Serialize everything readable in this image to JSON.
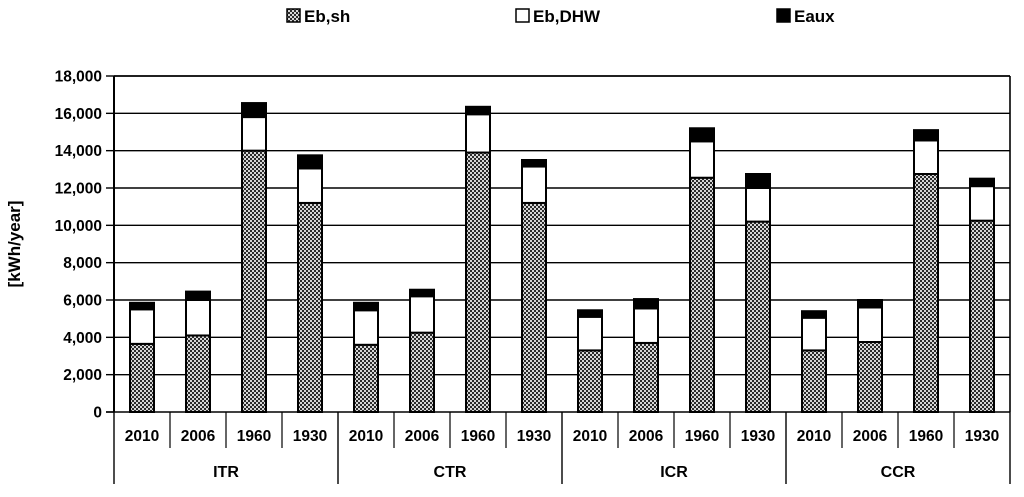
{
  "legend": {
    "items": [
      {
        "label": "Eb,sh",
        "swatch": "crosshatch-pattern",
        "color": "#8a8a8a"
      },
      {
        "label": "Eb,DHW",
        "swatch": "white-square",
        "color": "#ffffff"
      },
      {
        "label": "Eaux",
        "swatch": "black-square",
        "color": "#000000"
      }
    ]
  },
  "y_axis": {
    "title": "[kWh/year]",
    "tick_labels": [
      "0",
      "2,000",
      "4,000",
      "6,000",
      "8,000",
      "10,000",
      "12,000",
      "14,000",
      "16,000",
      "18,000"
    ]
  },
  "chart_data": {
    "type": "bar",
    "stacked": true,
    "title": "",
    "xlabel": "",
    "ylabel": "[kWh/year]",
    "ylim": [
      0,
      18000
    ],
    "ytick_step": 2000,
    "grid": "horizontal",
    "legend_position": "top",
    "groups": [
      "ITR",
      "CTR",
      "ICR",
      "CCR"
    ],
    "categories": [
      "2010",
      "2006",
      "1960",
      "1930"
    ],
    "series": [
      {
        "name": "Eb,sh",
        "fill": "crosshatch",
        "values_by_group": {
          "ITR": [
            3650,
            4100,
            14000,
            11200
          ],
          "CTR": [
            3600,
            4250,
            13900,
            11200
          ],
          "ICR": [
            3300,
            3700,
            12550,
            10200
          ],
          "CCR": [
            3300,
            3750,
            12750,
            10250
          ]
        }
      },
      {
        "name": "Eb,DHW",
        "fill": "#ffffff",
        "values_by_group": {
          "ITR": [
            1850,
            1900,
            1800,
            1850
          ],
          "CTR": [
            1850,
            1950,
            2050,
            1950
          ],
          "ICR": [
            1800,
            1850,
            1950,
            1800
          ],
          "CCR": [
            1750,
            1850,
            1800,
            1850
          ]
        }
      },
      {
        "name": "Eaux",
        "fill": "#000000",
        "values_by_group": {
          "ITR": [
            350,
            450,
            750,
            700
          ],
          "CTR": [
            400,
            350,
            400,
            350
          ],
          "ICR": [
            350,
            500,
            700,
            750
          ],
          "CCR": [
            350,
            400,
            550,
            400
          ]
        }
      }
    ],
    "totals_by_group": {
      "ITR": [
        5850,
        6450,
        16550,
        13750
      ],
      "CTR": [
        5850,
        6550,
        16350,
        13500
      ],
      "ICR": [
        5450,
        6050,
        15200,
        12750
      ],
      "CCR": [
        5400,
        6000,
        15100,
        12500
      ]
    }
  }
}
